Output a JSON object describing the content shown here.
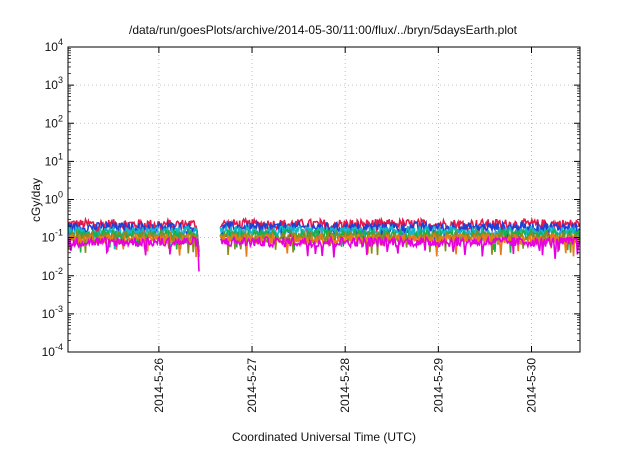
{
  "chart_data": {
    "type": "line",
    "title": "/data/run/goesPlots/archive/2014-05-30/11:00/flux/../bryn/5daysEarth.plot",
    "xlabel": "Coordinated Universal Time (UTC)",
    "ylabel": "cGy/day",
    "yscale": "log",
    "ylim": [
      0.0001,
      10000
    ],
    "xlim": [
      "2014-05-25T00:35",
      "2014-05-30T12:30"
    ],
    "grid": true,
    "legend": "none",
    "y_ticks": [
      {
        "base": "10",
        "exp": "-4"
      },
      {
        "base": "10",
        "exp": "-3"
      },
      {
        "base": "10",
        "exp": "-2"
      },
      {
        "base": "10",
        "exp": "-1"
      },
      {
        "base": "10",
        "exp": "0"
      },
      {
        "base": "10",
        "exp": "1"
      },
      {
        "base": "10",
        "exp": "2"
      },
      {
        "base": "10",
        "exp": "3"
      },
      {
        "base": "10",
        "exp": "4"
      }
    ],
    "x_ticks": [
      "2014-5-26",
      "2014-5-27",
      "2014-5-28",
      "2014-5-29",
      "2014-5-30"
    ],
    "x_tick_times": [
      "2014-05-26T00:00",
      "2014-05-27T00:00",
      "2014-05-28T00:00",
      "2014-05-29T00:00",
      "2014-05-30T00:00"
    ],
    "gap": [
      "2014-05-26T10:30",
      "2014-05-26T15:50"
    ],
    "series": [
      {
        "color": "#e6194b",
        "level": 0.22
      },
      {
        "color": "#1f3fd6",
        "level": 0.18
      },
      {
        "color": "#16b8c8",
        "level": 0.14
      },
      {
        "color": "#18b04a",
        "level": 0.115
      },
      {
        "color": "#8a8a20",
        "level": 0.1
      },
      {
        "color": "#e87b17",
        "level": 0.088
      },
      {
        "color": "#e600e0",
        "level": 0.075
      }
    ]
  }
}
